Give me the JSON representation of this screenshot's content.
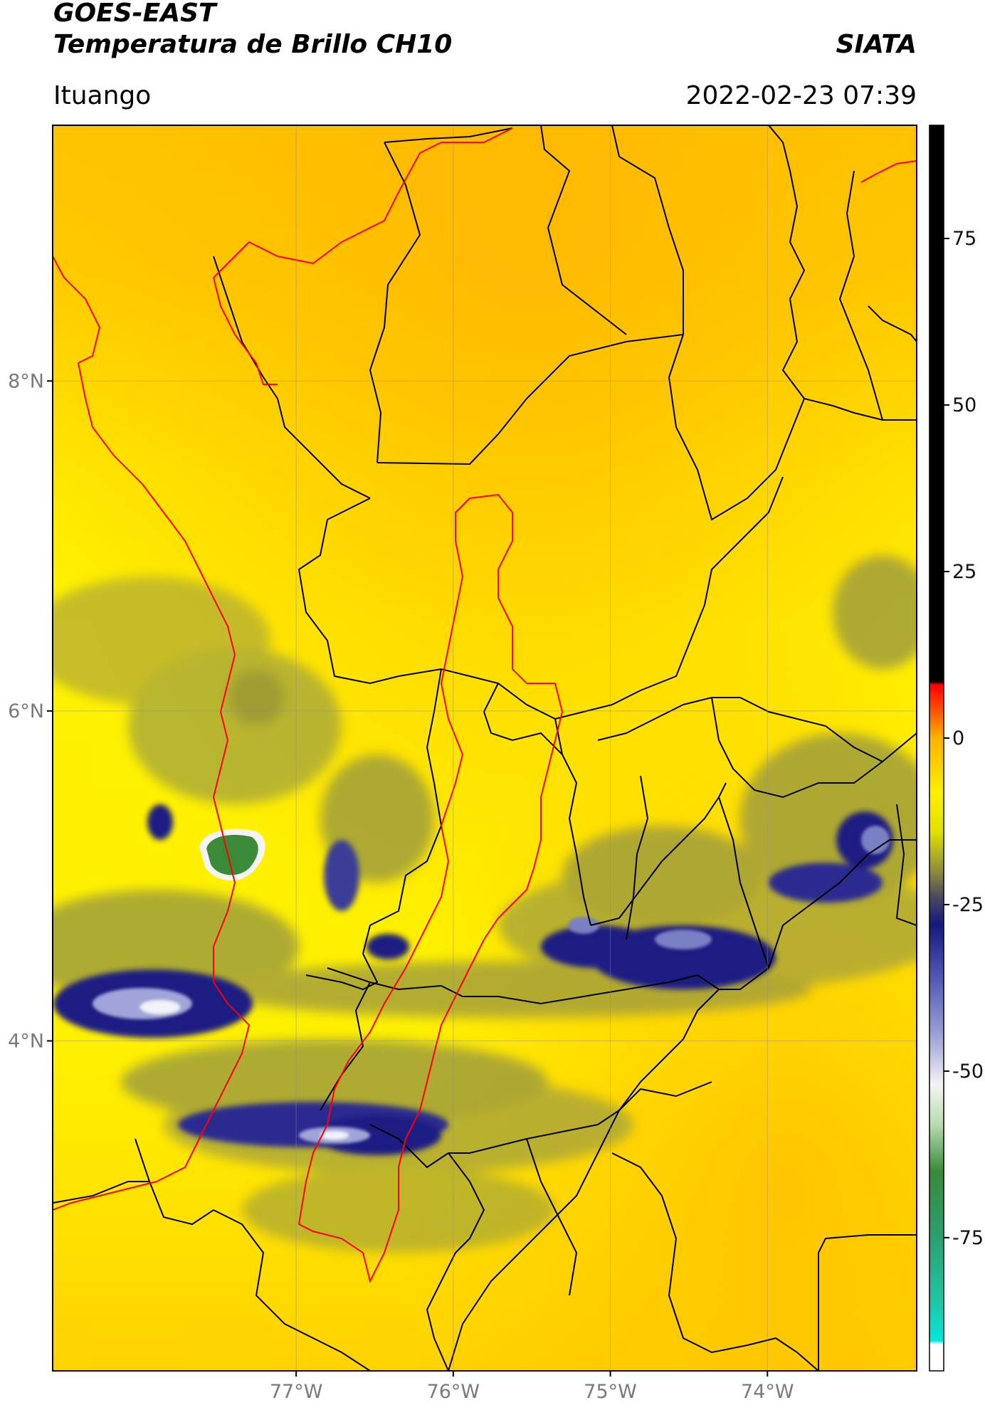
{
  "header": {
    "satellite": "GOES-EAST",
    "product": "Temperatura de Brillo CH10",
    "brand": "SIATA",
    "region": "Ituango",
    "datetime": "2022-02-23 07:39"
  },
  "map": {
    "lon_range": [
      -78.55,
      -73.05
    ],
    "lat_range": [
      2.0,
      9.55
    ],
    "lat_ticks": [
      {
        "value": 8,
        "label": "8°N"
      },
      {
        "value": 6,
        "label": "6°N"
      },
      {
        "value": 4,
        "label": "4°N"
      }
    ],
    "lon_ticks": [
      {
        "value": -77,
        "label": "77°W"
      },
      {
        "value": -76,
        "label": "76°W"
      },
      {
        "value": -75,
        "label": "75°W"
      },
      {
        "value": -74,
        "label": "74°W"
      }
    ],
    "colors": {
      "background_yellow": "#ffee00",
      "warm_orange": "#ffc400",
      "cloud_olive": "#9a9a40",
      "cloud_navy": "#1c1e82",
      "cloud_white": "#f2f2f8",
      "cloud_green": "#3a8a3a",
      "border_black": "#000000",
      "border_red": "#ff0000"
    }
  },
  "colorbar": {
    "range": [
      -95,
      92
    ],
    "ticks": [
      {
        "value": 75,
        "label": "75"
      },
      {
        "value": 50,
        "label": "50"
      },
      {
        "value": 25,
        "label": "25"
      },
      {
        "value": 0,
        "label": "0"
      },
      {
        "value": -25,
        "label": "-25"
      },
      {
        "value": -50,
        "label": "-50"
      },
      {
        "value": -75,
        "label": "-75"
      }
    ],
    "stops": [
      {
        "value": -95,
        "color": "#ffffff"
      },
      {
        "value": -91,
        "color": "#ffffff"
      },
      {
        "value": -90.5,
        "color": "#00e8e0"
      },
      {
        "value": -85,
        "color": "#1ec8a8"
      },
      {
        "value": -75,
        "color": "#2aa070"
      },
      {
        "value": -65,
        "color": "#3a8a3a"
      },
      {
        "value": -58,
        "color": "#b8dcb0"
      },
      {
        "value": -52,
        "color": "#f4f4f4"
      },
      {
        "value": -45,
        "color": "#a0a4d8"
      },
      {
        "value": -35,
        "color": "#4a50b0"
      },
      {
        "value": -28,
        "color": "#161880"
      },
      {
        "value": -24,
        "color": "#484860"
      },
      {
        "value": -20,
        "color": "#8c8c3c"
      },
      {
        "value": -14,
        "color": "#e4e000"
      },
      {
        "value": -8,
        "color": "#ffee00"
      },
      {
        "value": 0,
        "color": "#ffb000"
      },
      {
        "value": 5,
        "color": "#ff4000"
      },
      {
        "value": 8,
        "color": "#ff0000"
      },
      {
        "value": 8.5,
        "color": "#000000"
      },
      {
        "value": 92,
        "color": "#000000"
      }
    ]
  }
}
